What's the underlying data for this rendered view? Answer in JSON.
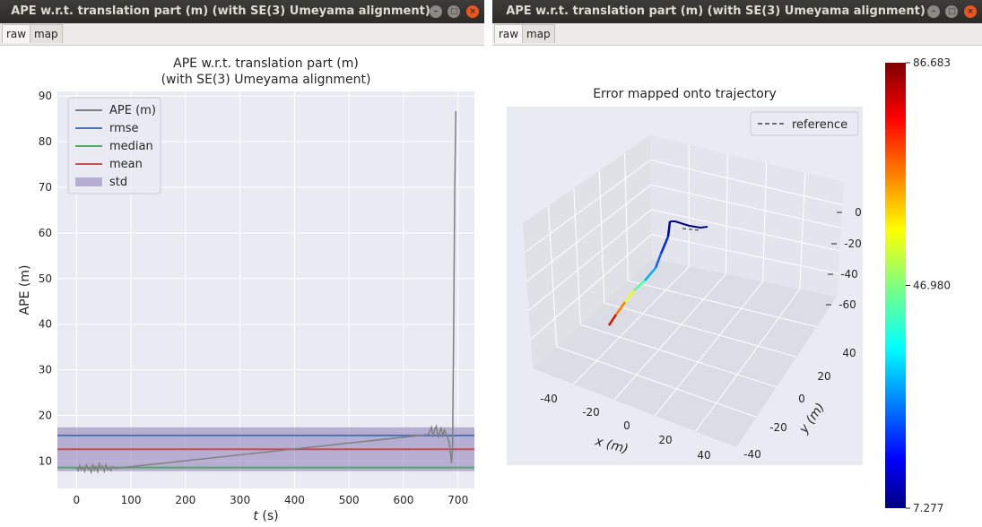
{
  "windows": [
    {
      "title": "APE w.r.t. translation part (m) (with SE(3) Umeyama alignment)",
      "tabs": [
        {
          "label": "raw",
          "active": true
        },
        {
          "label": "map",
          "active": false
        }
      ]
    },
    {
      "title": "APE w.r.t. translation part (m) (with SE(3) Umeyama alignment)",
      "tabs": [
        {
          "label": "raw",
          "active": true
        },
        {
          "label": "map",
          "active": false
        }
      ]
    }
  ],
  "colors": {
    "ape": "#808080",
    "rmse": "#4c72b0",
    "median": "#55a868",
    "mean": "#c44e52",
    "std": "#8172b2",
    "reference": "#444444",
    "axes_bg": "#eaeaf2",
    "grid": "#ffffff"
  },
  "chart_data": [
    {
      "type": "line",
      "title_lines": [
        "APE w.r.t. translation part (m)",
        "(with SE(3) Umeyama alignment)"
      ],
      "xlabel_italic": "t",
      "xlabel_unit": " (s)",
      "ylabel": "APE (m)",
      "xlim": [
        -35,
        730
      ],
      "ylim": [
        4,
        91
      ],
      "xticks": [
        0,
        100,
        200,
        300,
        400,
        500,
        600,
        700
      ],
      "yticks": [
        10,
        20,
        30,
        40,
        50,
        60,
        70,
        80,
        90
      ],
      "grid": true,
      "legend_position": "upper left",
      "series": [
        {
          "name": "APE (m)",
          "x": [
            0,
            3,
            6,
            9,
            12,
            15,
            18,
            21,
            24,
            27,
            30,
            33,
            36,
            39,
            42,
            45,
            48,
            51,
            54,
            57,
            60,
            63,
            66,
            70,
            645,
            648,
            651,
            654,
            657,
            660,
            663,
            666,
            669,
            672,
            675,
            678,
            681,
            684,
            686,
            688,
            690,
            692,
            694,
            696
          ],
          "y": [
            8.6,
            7.9,
            9.0,
            8.1,
            8.7,
            7.8,
            9.1,
            8.2,
            8.5,
            7.6,
            9.3,
            8.0,
            8.8,
            7.7,
            9.4,
            8.3,
            8.9,
            7.8,
            9.2,
            8.1,
            8.6,
            7.9,
            8.8,
            8.4,
            15.8,
            16.5,
            17.4,
            15.3,
            16.9,
            17.6,
            15.1,
            16.3,
            17.2,
            15.6,
            16.8,
            15.9,
            15.2,
            14.0,
            11.8,
            9.6,
            13.5,
            40.0,
            70.0,
            86.683
          ]
        }
      ],
      "hlines": [
        {
          "name": "rmse",
          "value": 15.6
        },
        {
          "name": "median",
          "value": 8.6
        },
        {
          "name": "mean",
          "value": 12.6
        }
      ],
      "band": {
        "name": "std",
        "lower": 7.8,
        "upper": 17.4
      }
    },
    {
      "type": "scatter",
      "title": "Error mapped onto trajectory",
      "xlabel": "x (m)",
      "ylabel": "y (m)",
      "legend": [
        {
          "name": "reference",
          "style": "dashed"
        }
      ],
      "xticks": [
        -40,
        -20,
        0,
        20,
        40
      ],
      "yticks": [
        -40,
        -20,
        0,
        20,
        40
      ],
      "zticks": [
        0,
        -20,
        -40,
        -60
      ],
      "colorbar": {
        "colormap": "jet",
        "min": 7.277,
        "mid": 46.98,
        "max": 86.683,
        "tick_labels": [
          "86.683",
          "46.980",
          "7.277"
        ]
      }
    }
  ]
}
